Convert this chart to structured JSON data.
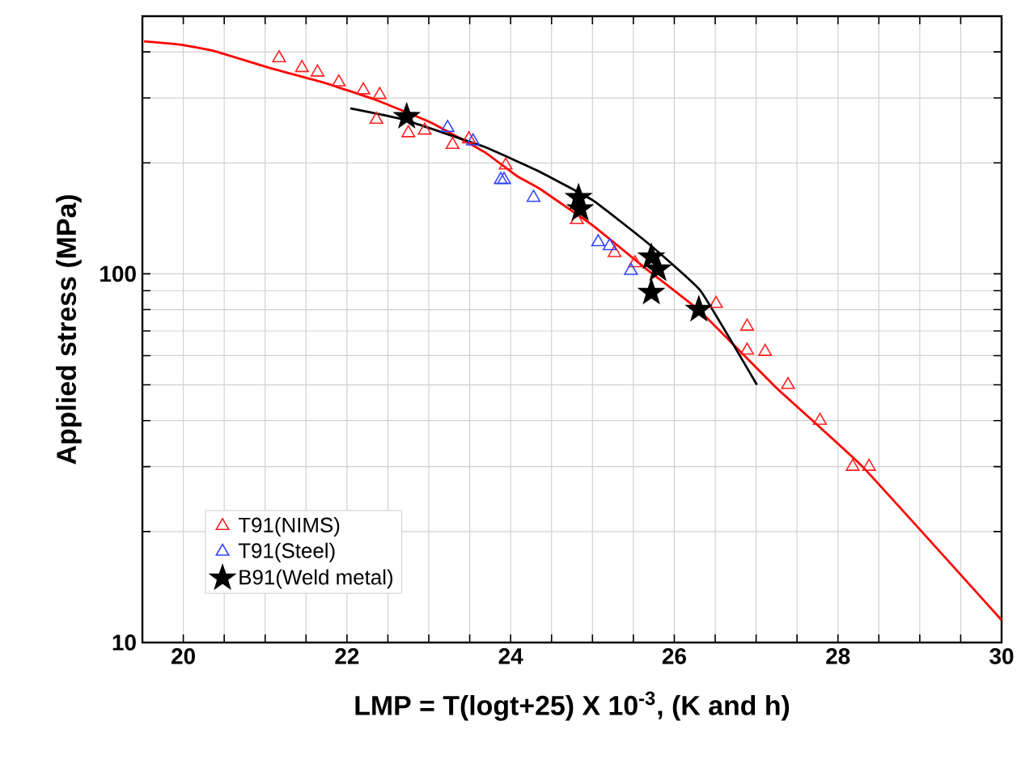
{
  "chart_data": {
    "type": "scatter",
    "xlabel": "LMP = T(logt+25) X 10$^{-3}$, (K and h)",
    "ylabel": "Applied stress (MPa)",
    "xlim": [
      19.5,
      30
    ],
    "ylim": [
      10,
      500
    ],
    "log": "y",
    "grid": true,
    "legend": "bottom left",
    "line_style": "solid",
    "xticks": [
      20,
      {
        "value": 20.5,
        "label": null
      },
      {
        "value": 21,
        "label": null
      },
      {
        "value": 21.5,
        "label": null
      },
      22,
      {
        "value": 22.5,
        "label": null
      },
      {
        "value": 23,
        "label": null
      },
      {
        "value": 23.5,
        "label": null
      },
      24,
      {
        "value": 24.5,
        "label": null
      },
      {
        "value": 25,
        "label": null
      },
      {
        "value": 25.5,
        "label": null
      },
      26,
      {
        "value": 26.5,
        "label": null
      },
      {
        "value": 27,
        "label": null
      },
      {
        "value": 27.5,
        "label": null
      },
      28,
      {
        "value": 28.5,
        "label": null
      },
      {
        "value": 29,
        "label": null
      },
      {
        "value": 29.5,
        "label": null
      },
      30
    ],
    "yticks": [
      10,
      {
        "value": 20,
        "label": null
      },
      {
        "value": 30,
        "label": null
      },
      {
        "value": 40,
        "label": null
      },
      {
        "value": 50,
        "label": null
      },
      {
        "value": 60,
        "label": null
      },
      {
        "value": 70,
        "label": null
      },
      {
        "value": 80,
        "label": null
      },
      {
        "value": 90,
        "label": null
      },
      100,
      {
        "value": 200,
        "label": null
      },
      {
        "value": 300,
        "label": null
      },
      {
        "value": 400,
        "label": null
      }
    ],
    "series": [
      {
        "name": "T91(NIMS)",
        "marker": "triangle",
        "color": "#ff2020",
        "x": [
          21.17,
          21.45,
          21.64,
          21.9,
          22.2,
          22.4,
          22.36,
          22.75,
          22.95,
          23.29,
          23.49,
          23.94,
          24.81,
          25.27,
          25.52,
          26.51,
          26.89,
          26.89,
          27.11,
          27.39,
          27.78,
          28.18,
          28.38
        ],
        "values": [
          385,
          362,
          352,
          331,
          315,
          306,
          262,
          241,
          245,
          224,
          232,
          197,
          140,
          114,
          107,
          83,
          72,
          62,
          61.5,
          50,
          40,
          30,
          30
        ]
      },
      {
        "name": "T91(Steel)",
        "marker": "triangle",
        "color": "#3344ff",
        "x": [
          23.23,
          23.54,
          23.88,
          23.92,
          24.28,
          25.07,
          25.21,
          25.47
        ],
        "values": [
          249,
          229,
          180,
          180,
          161,
          122,
          119,
          102
        ]
      },
      {
        "name": "B91(Weld metal)",
        "marker": "star",
        "color": "#000000",
        "x": [
          22.73,
          24.83,
          24.85,
          25.72,
          25.8,
          25.72,
          26.3
        ],
        "values": [
          267,
          161,
          150,
          111,
          103,
          89,
          80
        ]
      },
      {
        "type": "line",
        "color": "#ff0000",
        "x": [
          19.52,
          19.98,
          20.38,
          21.05,
          21.7,
          22.36,
          23.03,
          23.68,
          24.08,
          24.34,
          25.01,
          25.66,
          26.32,
          27.25,
          28.3,
          30
        ],
        "values": [
          427,
          418,
          402,
          362,
          331,
          296,
          257,
          214,
          184,
          171,
          135,
          103,
          79,
          49,
          30,
          11.5
        ]
      },
      {
        "type": "line",
        "color": "#000000",
        "x": [
          22.04,
          22.69,
          23.68,
          24.34,
          25.01,
          25.66,
          26.32,
          27.01
        ],
        "values": [
          281,
          262,
          221,
          190,
          158,
          122,
          90,
          50
        ]
      }
    ]
  }
}
